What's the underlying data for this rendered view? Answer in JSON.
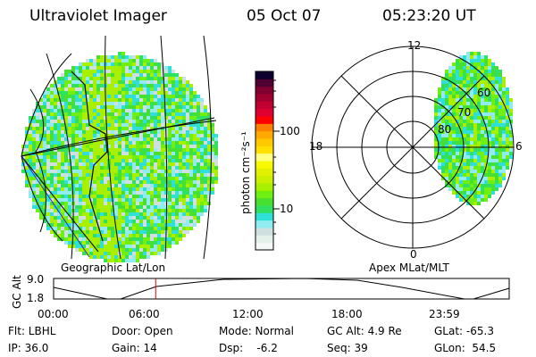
{
  "header": {
    "instrument": "Ultraviolet Imager",
    "date": "05 Oct 07",
    "time": "05:23:20 UT"
  },
  "colorbar": {
    "label": "photon cm⁻²s⁻¹",
    "tick_100": "100",
    "tick_10": "10",
    "colors": [
      "#f4f8f6",
      "#e4f0ea",
      "#d0e0e0",
      "#90ecf0",
      "#30e0d8",
      "#30e060",
      "#48e030",
      "#70f010",
      "#a8f000",
      "#c8f000",
      "#e0f000",
      "#f8f800",
      "#ffff80",
      "#ffe000",
      "#ffc800",
      "#ffa800",
      "#ff8000",
      "#ff0000",
      "#e00030",
      "#c00030",
      "#a00030",
      "#800030",
      "#500030",
      "#100030"
    ]
  },
  "polar": {
    "mlt_top": "12",
    "mlt_bottom": "0",
    "mlt_left": "18",
    "mlt_right": "6",
    "lat_80": "80",
    "lat_70": "70",
    "lat_60": "60"
  },
  "left_label": "Geographic Lat/Lon",
  "right_label": "Apex MLat/MLT",
  "timeline": {
    "ylabel": "GC Alt",
    "ymax": "9.0",
    "ymin": "1.8",
    "ticks": [
      "00:00",
      "06:00",
      "12:00",
      "18:00",
      "23:59"
    ],
    "current_fraction": 0.224
  },
  "info": {
    "flt": "Flt: LBHL",
    "door": "Door: Open",
    "mode": "Mode: Normal",
    "gcalt": "GC Alt: 4.9 Re",
    "glat": "GLat: -65.3",
    "ip": "IP: 36.0",
    "gain": "Gain: 14",
    "dsp": "Dsp:    -6.2",
    "seq": "Seq: 39",
    "glon": "GLon:  54.5"
  }
}
